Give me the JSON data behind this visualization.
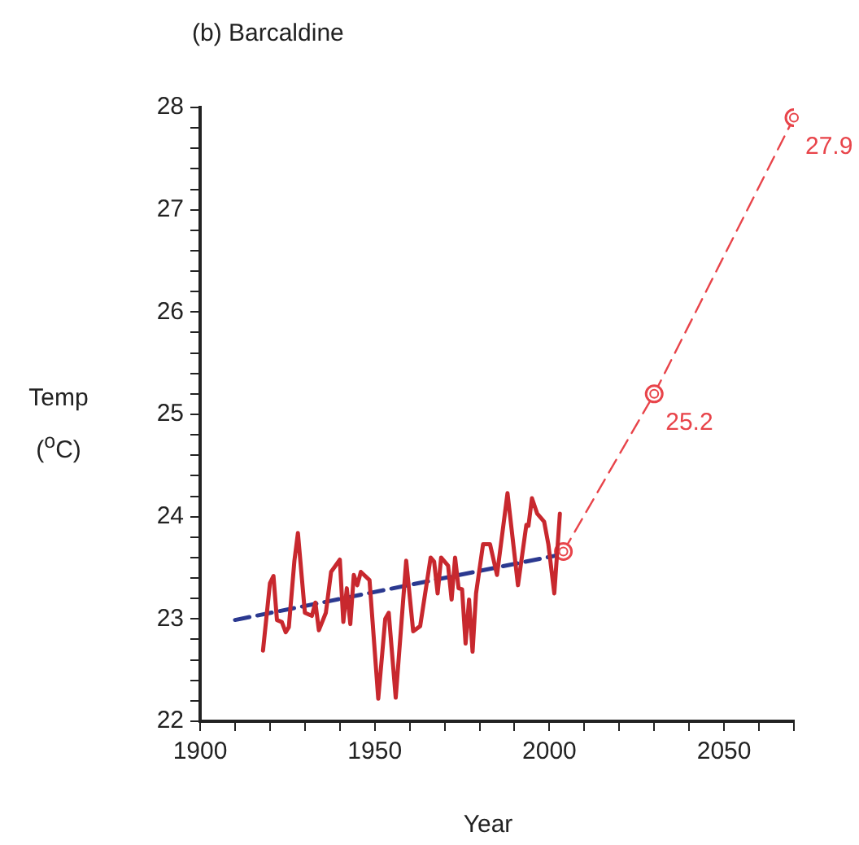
{
  "chart_data": {
    "type": "line",
    "title": "(b) Barcaldine",
    "xlabel": "Year",
    "ylabel": "Temp ($^{o}$C)",
    "xlim": [
      1900,
      2070
    ],
    "xticks": [
      1900,
      {
        "value": 1910,
        "label": null
      },
      {
        "value": 1920,
        "label": null
      },
      {
        "value": 1930,
        "label": null
      },
      {
        "value": 1940,
        "label": null
      },
      1950,
      {
        "value": 1960,
        "label": null
      },
      {
        "value": 1970,
        "label": null
      },
      {
        "value": 1980,
        "label": null
      },
      {
        "value": 1990,
        "label": null
      },
      2000,
      {
        "value": 2010,
        "label": null
      },
      {
        "value": 2020,
        "label": null
      },
      {
        "value": 2030,
        "label": null
      },
      {
        "value": 2040,
        "label": null
      },
      2050,
      {
        "value": 2060,
        "label": null
      },
      {
        "value": 2070,
        "label": null
      }
    ],
    "ylim": [
      22,
      28
    ],
    "yticks": [
      22,
      {
        "value": 22.2,
        "label": null
      },
      {
        "value": 22.4,
        "label": null
      },
      {
        "value": 22.6,
        "label": null
      },
      {
        "value": 22.8,
        "label": null
      },
      23,
      {
        "value": 23.2,
        "label": null
      },
      {
        "value": 23.4,
        "label": null
      },
      {
        "value": 23.6,
        "label": null
      },
      {
        "value": 23.8,
        "label": null
      },
      24,
      {
        "value": 24.2,
        "label": null
      },
      {
        "value": 24.4,
        "label": null
      },
      {
        "value": 24.6,
        "label": null
      },
      {
        "value": 24.8,
        "label": null
      },
      25,
      {
        "value": 25.2,
        "label": null
      },
      {
        "value": 25.4,
        "label": null
      },
      {
        "value": 25.6,
        "label": null
      },
      {
        "value": 25.8,
        "label": null
      },
      26,
      {
        "value": 26.2,
        "label": null
      },
      {
        "value": 26.4,
        "label": null
      },
      {
        "value": 26.6,
        "label": null
      },
      {
        "value": 26.8,
        "label": null
      },
      27,
      {
        "value": 27.2,
        "label": null
      },
      {
        "value": 27.4,
        "label": null
      },
      {
        "value": 27.6,
        "label": null
      },
      {
        "value": 27.8,
        "label": null
      },
      28
    ],
    "grid": false,
    "legend": false,
    "series": [
      {
        "color": "#c8282e",
        "line_style": "solid",
        "marker": "none",
        "x": [
          1918,
          1920,
          1921,
          1922,
          1923.4,
          1924.5,
          1925.4,
          1927,
          1928,
          1930,
          1932,
          1933,
          1934,
          1936,
          1937.5,
          1940,
          1941,
          1942,
          1943,
          1944,
          1945,
          1946,
          1948.5,
          1951,
          1953,
          1954,
          1956,
          1959,
          1961,
          1963,
          1966,
          1967,
          1968,
          1969,
          1971,
          1972,
          1973,
          1974,
          1975,
          1976,
          1977,
          1978,
          1979,
          1981,
          1983,
          1985,
          1988,
          1991,
          1993.4,
          1994,
          1995,
          1996.5,
          1998.5,
          1999.7,
          2001.4,
          2003
        ],
        "values": [
          22.69,
          23.35,
          23.42,
          22.99,
          22.97,
          22.87,
          22.92,
          23.57,
          23.84,
          23.06,
          23.03,
          23.16,
          22.89,
          23.06,
          23.46,
          23.58,
          22.97,
          23.3,
          22.95,
          23.43,
          23.33,
          23.46,
          23.38,
          22.22,
          23.0,
          23.06,
          22.23,
          23.57,
          22.88,
          22.93,
          23.6,
          23.56,
          23.25,
          23.6,
          23.52,
          23.19,
          23.6,
          23.3,
          23.29,
          22.76,
          23.19,
          22.68,
          23.25,
          23.73,
          23.73,
          23.43,
          24.23,
          23.33,
          23.92,
          23.91,
          24.18,
          24.03,
          23.95,
          23.73,
          23.25,
          24.03
        ]
      },
      {
        "type": "line",
        "color": "#2b3990",
        "line_style": "dashed",
        "marker": "none",
        "x": [
          1910,
          2002
        ],
        "values": [
          22.99,
          23.62
        ]
      },
      {
        "type": "line",
        "color": "#e8444a",
        "line_style": "dashed",
        "marker": "circle",
        "x": [
          2004,
          2030,
          2070
        ],
        "values": [
          23.66,
          25.2,
          27.9
        ],
        "value_labels": [
          null,
          "25.2",
          "27.9"
        ]
      }
    ]
  }
}
